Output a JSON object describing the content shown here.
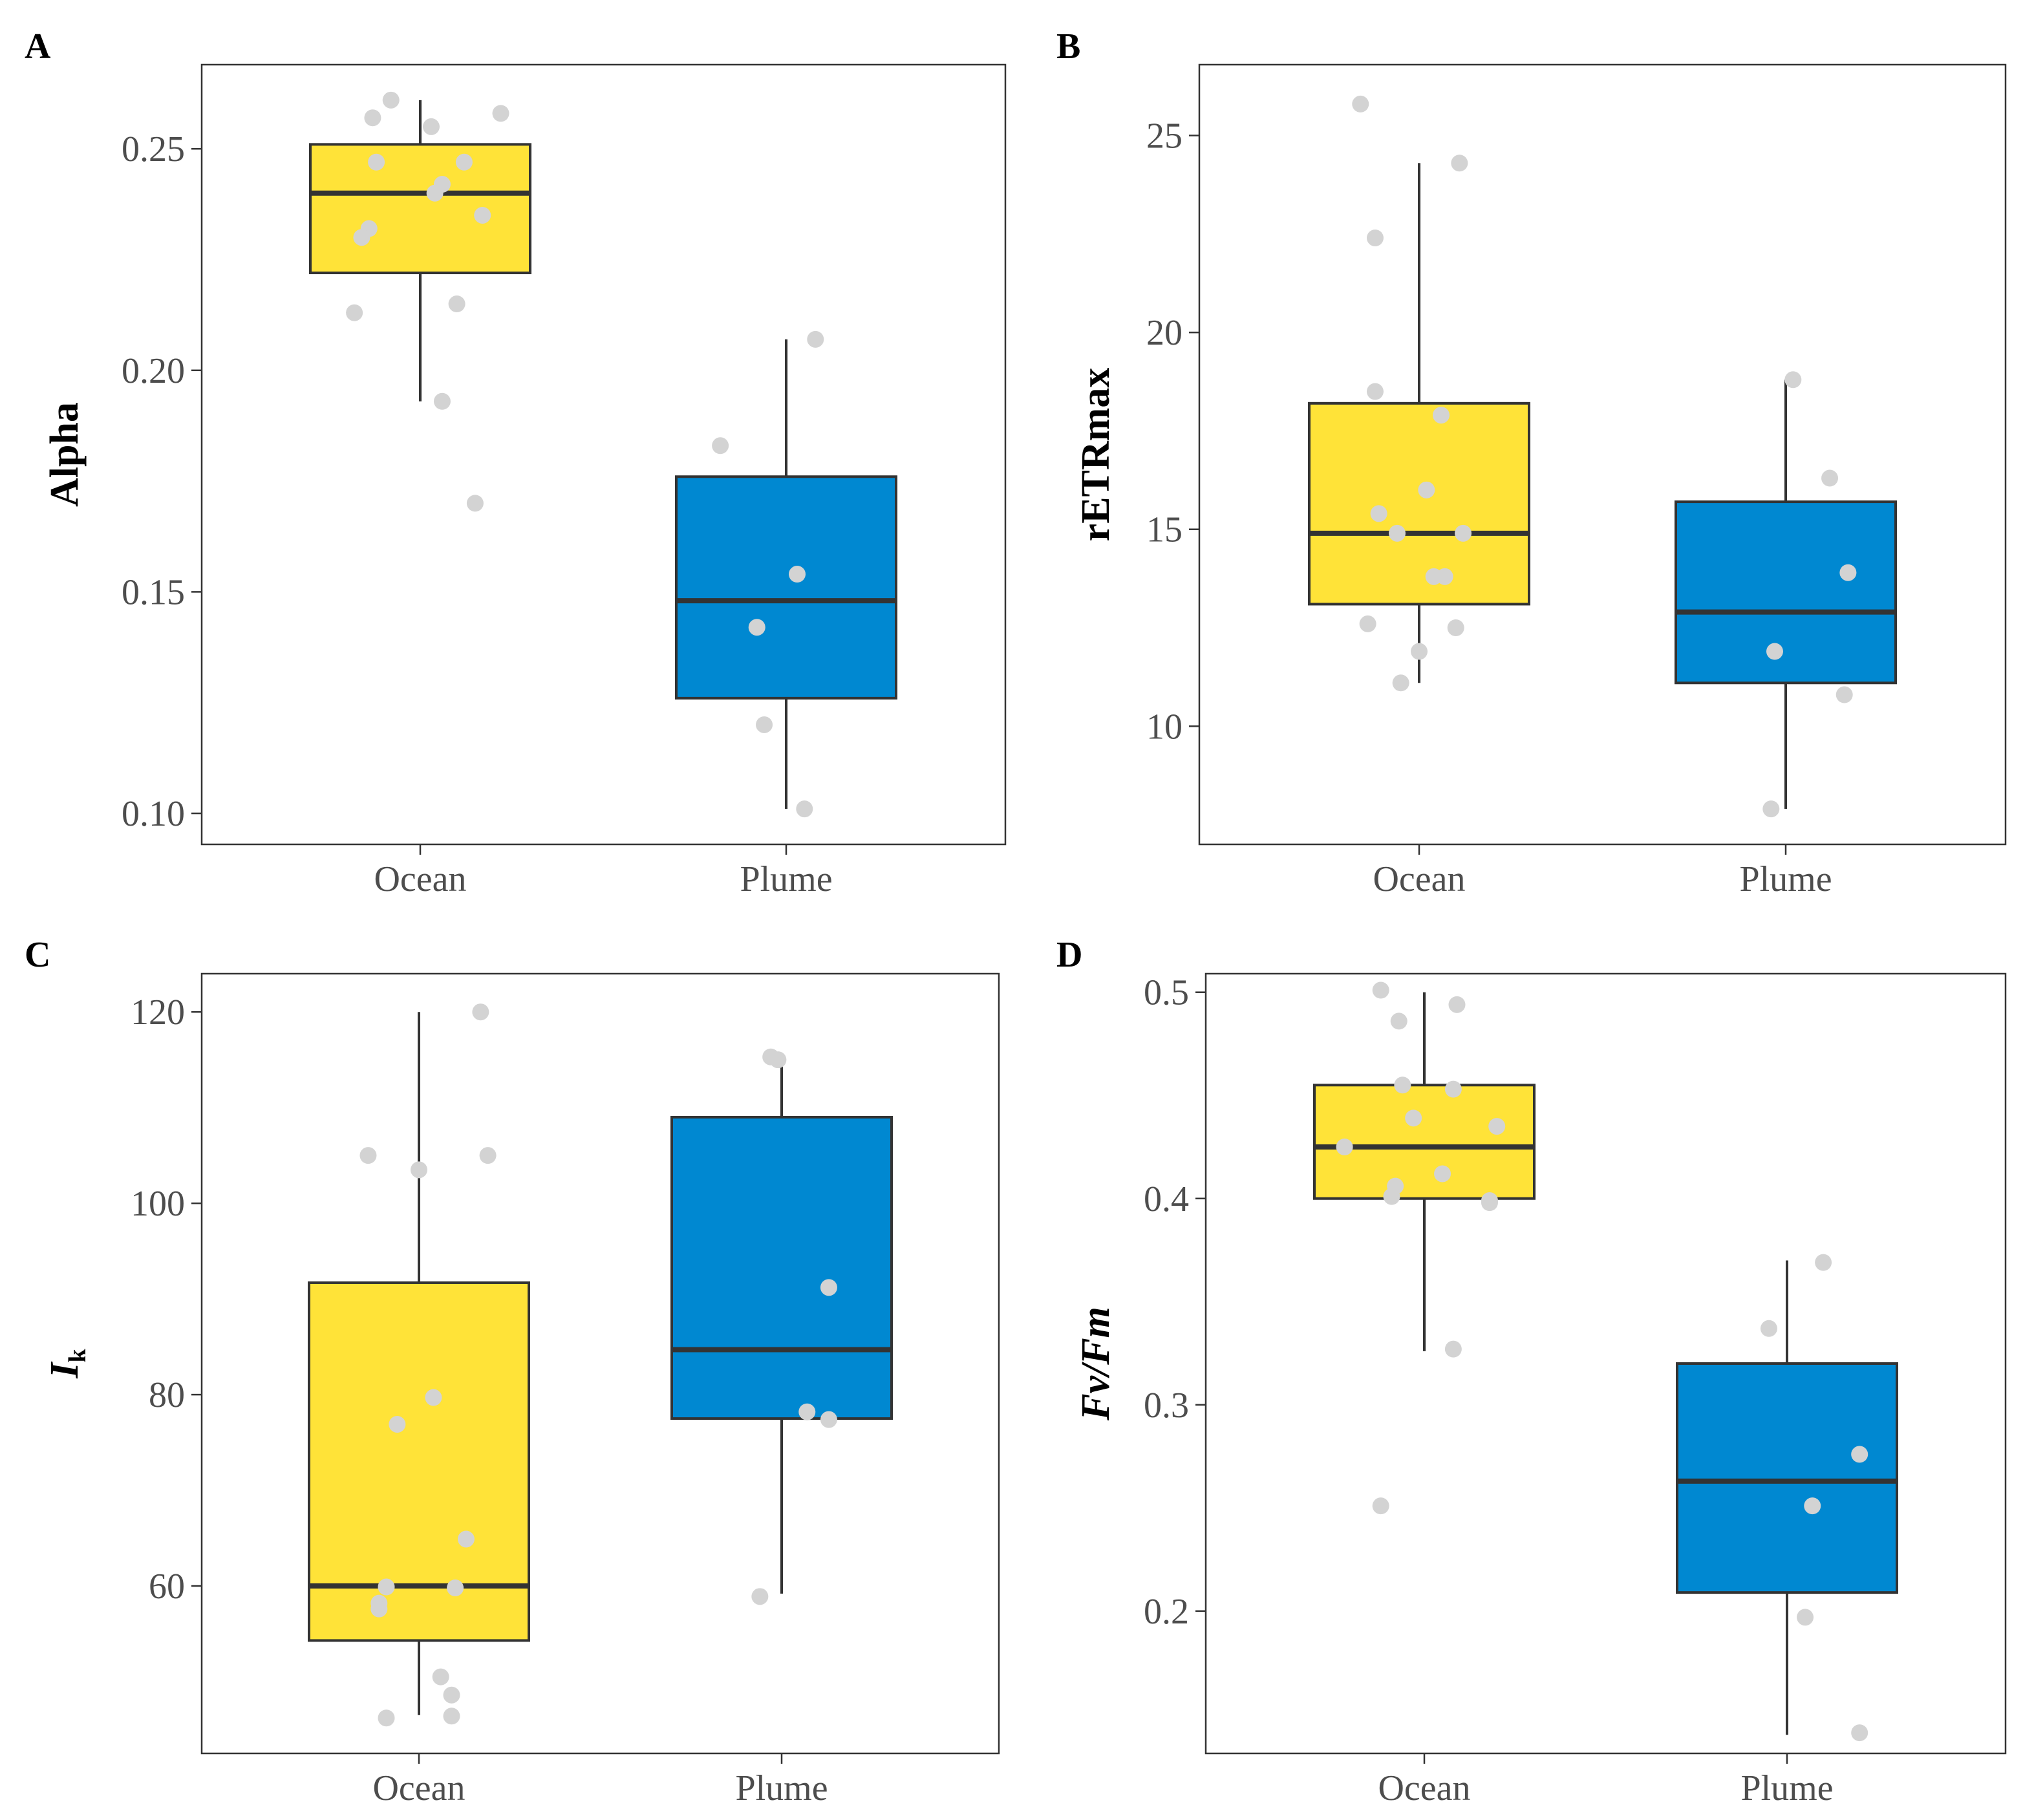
{
  "colors": {
    "ocean": "#FFE338",
    "plume": "#0088D1",
    "points": "#D3D3D3"
  },
  "chart_data": [
    {
      "panel": "A",
      "type": "box",
      "ylabel": "Alpha",
      "ylim": [
        0.093,
        0.269
      ],
      "yticks": [
        0.1,
        0.15,
        0.2,
        0.25
      ],
      "ytick_labels": [
        "0.10",
        "0.15",
        "0.20",
        "0.25"
      ],
      "categories": [
        "Ocean",
        "Plume"
      ],
      "boxes": [
        {
          "group": "Ocean",
          "whisker_low": 0.193,
          "q1": 0.222,
          "median": 0.24,
          "q3": 0.251,
          "whisker_high": 0.261
        },
        {
          "group": "Plume",
          "whisker_low": 0.101,
          "q1": 0.126,
          "median": 0.148,
          "q3": 0.176,
          "whisker_high": 0.207
        }
      ],
      "points": [
        {
          "group": "Ocean",
          "jitter": -0.08,
          "y": 0.261
        },
        {
          "group": "Ocean",
          "jitter": -0.13,
          "y": 0.257
        },
        {
          "group": "Ocean",
          "jitter": 0.03,
          "y": 0.255
        },
        {
          "group": "Ocean",
          "jitter": 0.22,
          "y": 0.258
        },
        {
          "group": "Ocean",
          "jitter": -0.12,
          "y": 0.247
        },
        {
          "group": "Ocean",
          "jitter": 0.12,
          "y": 0.247
        },
        {
          "group": "Ocean",
          "jitter": 0.06,
          "y": 0.242
        },
        {
          "group": "Ocean",
          "jitter": 0.04,
          "y": 0.24
        },
        {
          "group": "Ocean",
          "jitter": 0.17,
          "y": 0.235
        },
        {
          "group": "Ocean",
          "jitter": -0.14,
          "y": 0.232
        },
        {
          "group": "Ocean",
          "jitter": -0.16,
          "y": 0.23
        },
        {
          "group": "Ocean",
          "jitter": -0.18,
          "y": 0.213
        },
        {
          "group": "Ocean",
          "jitter": 0.1,
          "y": 0.215
        },
        {
          "group": "Ocean",
          "jitter": 0.06,
          "y": 0.193
        },
        {
          "group": "Ocean",
          "jitter": 0.15,
          "y": 0.17
        },
        {
          "group": "Plume",
          "jitter": -0.18,
          "y": 0.183
        },
        {
          "group": "Plume",
          "jitter": 0.08,
          "y": 0.207
        },
        {
          "group": "Plume",
          "jitter": 0.03,
          "y": 0.154
        },
        {
          "group": "Plume",
          "jitter": -0.08,
          "y": 0.142
        },
        {
          "group": "Plume",
          "jitter": -0.06,
          "y": 0.12
        },
        {
          "group": "Plume",
          "jitter": 0.05,
          "y": 0.101
        }
      ]
    },
    {
      "panel": "B",
      "type": "box",
      "ylabel": "rETRmax",
      "ylim": [
        7.0,
        26.8
      ],
      "yticks": [
        10,
        15,
        20,
        25
      ],
      "ytick_labels": [
        "10",
        "15",
        "20",
        "25"
      ],
      "categories": [
        "Ocean",
        "Plume"
      ],
      "boxes": [
        {
          "group": "Ocean",
          "whisker_low": 11.1,
          "q1": 13.1,
          "median": 14.9,
          "q3": 18.2,
          "whisker_high": 24.3
        },
        {
          "group": "Plume",
          "whisker_low": 7.9,
          "q1": 11.1,
          "median": 12.9,
          "q3": 15.7,
          "whisker_high": 18.8
        }
      ],
      "points": [
        {
          "group": "Ocean",
          "jitter": -0.16,
          "y": 25.8
        },
        {
          "group": "Ocean",
          "jitter": 0.11,
          "y": 24.3
        },
        {
          "group": "Ocean",
          "jitter": -0.12,
          "y": 22.4
        },
        {
          "group": "Ocean",
          "jitter": -0.12,
          "y": 18.5
        },
        {
          "group": "Ocean",
          "jitter": 0.06,
          "y": 17.9
        },
        {
          "group": "Ocean",
          "jitter": 0.02,
          "y": 16.0
        },
        {
          "group": "Ocean",
          "jitter": -0.11,
          "y": 15.4
        },
        {
          "group": "Ocean",
          "jitter": -0.06,
          "y": 14.9
        },
        {
          "group": "Ocean",
          "jitter": 0.12,
          "y": 14.9
        },
        {
          "group": "Ocean",
          "jitter": 0.04,
          "y": 13.8
        },
        {
          "group": "Ocean",
          "jitter": 0.07,
          "y": 13.8
        },
        {
          "group": "Ocean",
          "jitter": -0.14,
          "y": 12.6
        },
        {
          "group": "Ocean",
          "jitter": 0.1,
          "y": 12.5
        },
        {
          "group": "Ocean",
          "jitter": 0.0,
          "y": 11.9
        },
        {
          "group": "Ocean",
          "jitter": -0.05,
          "y": 11.1
        },
        {
          "group": "Plume",
          "jitter": 0.02,
          "y": 18.8
        },
        {
          "group": "Plume",
          "jitter": 0.12,
          "y": 16.3
        },
        {
          "group": "Plume",
          "jitter": 0.17,
          "y": 13.9
        },
        {
          "group": "Plume",
          "jitter": -0.03,
          "y": 11.9
        },
        {
          "group": "Plume",
          "jitter": 0.16,
          "y": 10.8
        },
        {
          "group": "Plume",
          "jitter": -0.04,
          "y": 7.9
        }
      ]
    },
    {
      "panel": "C",
      "type": "box",
      "ylabel": "I",
      "ylabel_subscript": "k",
      "ylim": [
        42.5,
        124
      ],
      "yticks": [
        60,
        80,
        100,
        120
      ],
      "ytick_labels": [
        "60",
        "80",
        "100",
        "120"
      ],
      "categories": [
        "Ocean",
        "Plume"
      ],
      "boxes": [
        {
          "group": "Ocean",
          "whisker_low": 46.5,
          "q1": 54.3,
          "median": 60.0,
          "q3": 91.7,
          "whisker_high": 120.0
        },
        {
          "group": "Plume",
          "whisker_low": 59.2,
          "q1": 77.5,
          "median": 84.7,
          "q3": 109.0,
          "whisker_high": 115.3
        }
      ],
      "points": [
        {
          "group": "Ocean",
          "jitter": 0.17,
          "y": 120.0
        },
        {
          "group": "Ocean",
          "jitter": -0.14,
          "y": 105.0
        },
        {
          "group": "Ocean",
          "jitter": 0.19,
          "y": 105.0
        },
        {
          "group": "Ocean",
          "jitter": 0.0,
          "y": 103.5
        },
        {
          "group": "Ocean",
          "jitter": 0.04,
          "y": 79.7
        },
        {
          "group": "Ocean",
          "jitter": -0.06,
          "y": 76.9
        },
        {
          "group": "Ocean",
          "jitter": 0.13,
          "y": 64.9
        },
        {
          "group": "Ocean",
          "jitter": 0.1,
          "y": 59.8
        },
        {
          "group": "Ocean",
          "jitter": -0.09,
          "y": 59.9
        },
        {
          "group": "Ocean",
          "jitter": -0.11,
          "y": 58.2
        },
        {
          "group": "Ocean",
          "jitter": -0.11,
          "y": 57.6
        },
        {
          "group": "Ocean",
          "jitter": 0.06,
          "y": 50.5
        },
        {
          "group": "Ocean",
          "jitter": 0.09,
          "y": 48.6
        },
        {
          "group": "Ocean",
          "jitter": -0.09,
          "y": 46.2
        },
        {
          "group": "Ocean",
          "jitter": 0.09,
          "y": 46.4
        },
        {
          "group": "Plume",
          "jitter": -0.03,
          "y": 115.3
        },
        {
          "group": "Plume",
          "jitter": -0.01,
          "y": 115.0
        },
        {
          "group": "Plume",
          "jitter": 0.13,
          "y": 91.2
        },
        {
          "group": "Plume",
          "jitter": 0.07,
          "y": 78.2
        },
        {
          "group": "Plume",
          "jitter": 0.13,
          "y": 77.4
        },
        {
          "group": "Plume",
          "jitter": -0.06,
          "y": 58.9
        }
      ]
    },
    {
      "panel": "D",
      "type": "box",
      "ylabel": "Fv/Fm",
      "ylim": [
        0.131,
        0.509
      ],
      "yticks": [
        0.2,
        0.3,
        0.4,
        0.5
      ],
      "ytick_labels": [
        "0.2",
        "0.3",
        "0.4",
        "0.5"
      ],
      "categories": [
        "Ocean",
        "Plume"
      ],
      "boxes": [
        {
          "group": "Ocean",
          "whisker_low": 0.326,
          "q1": 0.4,
          "median": 0.425,
          "q3": 0.455,
          "whisker_high": 0.5
        },
        {
          "group": "Plume",
          "whisker_low": 0.14,
          "q1": 0.209,
          "median": 0.263,
          "q3": 0.32,
          "whisker_high": 0.37
        }
      ],
      "points": [
        {
          "group": "Ocean",
          "jitter": -0.12,
          "y": 0.501
        },
        {
          "group": "Ocean",
          "jitter": 0.09,
          "y": 0.494
        },
        {
          "group": "Ocean",
          "jitter": -0.07,
          "y": 0.486
        },
        {
          "group": "Ocean",
          "jitter": -0.06,
          "y": 0.455
        },
        {
          "group": "Ocean",
          "jitter": 0.08,
          "y": 0.453
        },
        {
          "group": "Ocean",
          "jitter": -0.03,
          "y": 0.439
        },
        {
          "group": "Ocean",
          "jitter": 0.2,
          "y": 0.435
        },
        {
          "group": "Ocean",
          "jitter": -0.22,
          "y": 0.425
        },
        {
          "group": "Ocean",
          "jitter": 0.05,
          "y": 0.412
        },
        {
          "group": "Ocean",
          "jitter": -0.08,
          "y": 0.406
        },
        {
          "group": "Ocean",
          "jitter": -0.09,
          "y": 0.401
        },
        {
          "group": "Ocean",
          "jitter": 0.18,
          "y": 0.399
        },
        {
          "group": "Ocean",
          "jitter": 0.18,
          "y": 0.398
        },
        {
          "group": "Ocean",
          "jitter": 0.08,
          "y": 0.327
        },
        {
          "group": "Ocean",
          "jitter": -0.12,
          "y": 0.251
        },
        {
          "group": "Plume",
          "jitter": 0.1,
          "y": 0.369
        },
        {
          "group": "Plume",
          "jitter": -0.05,
          "y": 0.337
        },
        {
          "group": "Plume",
          "jitter": 0.2,
          "y": 0.276
        },
        {
          "group": "Plume",
          "jitter": 0.07,
          "y": 0.251
        },
        {
          "group": "Plume",
          "jitter": 0.05,
          "y": 0.197
        },
        {
          "group": "Plume",
          "jitter": 0.2,
          "y": 0.141
        }
      ]
    }
  ]
}
